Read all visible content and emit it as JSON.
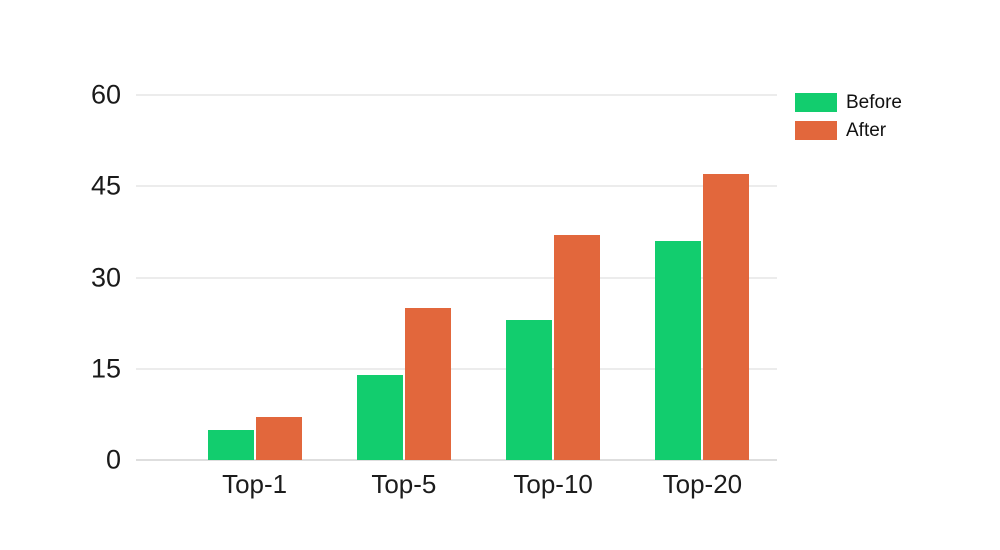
{
  "chart_data": {
    "type": "bar",
    "title": "",
    "xlabel": "",
    "ylabel": "",
    "categories": [
      "Top-1",
      "Top-5",
      "Top-10",
      "Top-20"
    ],
    "series": [
      {
        "name": "Before",
        "color": "#12cd6e",
        "values": [
          5,
          14,
          23,
          36
        ]
      },
      {
        "name": "After",
        "color": "#e2673c",
        "values": [
          7,
          25,
          37,
          47
        ]
      }
    ],
    "ylim": [
      0,
      60
    ],
    "yticks": [
      0,
      15,
      30,
      45,
      60
    ],
    "grid": true,
    "gridline_orientation": "horizontal",
    "legend_position": "top-right"
  },
  "style": {
    "background": "#ffffff",
    "gridline_color": "#ececec",
    "axis_line_color": "#dedede",
    "tick_label_color": "#1a1a1a",
    "category_label_color": "#1c1c1c",
    "legend_text_color": "#111111"
  }
}
